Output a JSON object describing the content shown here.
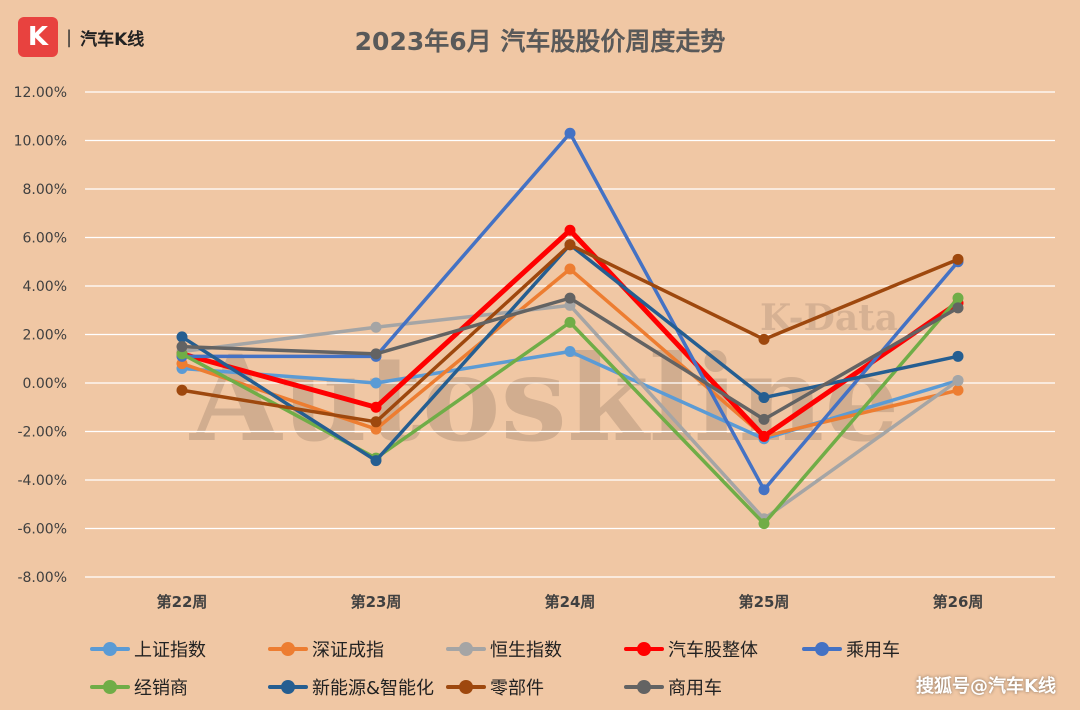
{
  "logo": {
    "mark": "K",
    "separator": "|",
    "text": "汽车K线"
  },
  "watermark": {
    "big": "Autoskline",
    "small": "K-Data"
  },
  "source_label": "搜狐号@汽车K线",
  "chart_data": {
    "type": "line",
    "title": "2023年6月 汽车股股价周度走势",
    "categories": [
      "第22周",
      "第23周",
      "第24周",
      "第25周",
      "第26周"
    ],
    "ylim": [
      -8,
      12
    ],
    "yticks": [
      12,
      10,
      8,
      6,
      4,
      2,
      0,
      -2,
      -4,
      -6,
      -8
    ],
    "ytick_labels": [
      "12.00%",
      "10.00%",
      "8.00%",
      "6.00%",
      "4.00%",
      "2.00%",
      "0.00%",
      "-2.00%",
      "-4.00%",
      "-6.00%",
      "-8.00%"
    ],
    "grid": true,
    "legend_position": "bottom",
    "series": [
      {
        "name": "上证指数",
        "color": "#5b9bd5",
        "values": [
          0.6,
          0.0,
          1.3,
          -2.3,
          0.1
        ]
      },
      {
        "name": "深证成指",
        "color": "#ed7d31",
        "values": [
          0.8,
          -1.9,
          4.7,
          -2.2,
          -0.3
        ]
      },
      {
        "name": "恒生指数",
        "color": "#a5a5a5",
        "values": [
          1.3,
          2.3,
          3.2,
          -5.6,
          0.1
        ]
      },
      {
        "name": "汽车股整体",
        "color": "#ff0000",
        "values": [
          1.2,
          -1.0,
          6.3,
          -2.2,
          3.3
        ]
      },
      {
        "name": "乘用车",
        "color": "#4472c4",
        "values": [
          1.1,
          1.1,
          10.3,
          -4.4,
          5.0
        ]
      },
      {
        "name": "经销商",
        "color": "#70ad47",
        "values": [
          1.2,
          -3.1,
          2.5,
          -5.8,
          3.5
        ]
      },
      {
        "name": "新能源&智能化",
        "color": "#255e91",
        "values": [
          1.9,
          -3.2,
          5.7,
          -0.6,
          1.1
        ]
      },
      {
        "name": "零部件",
        "color": "#9e480e",
        "values": [
          -0.3,
          -1.6,
          5.7,
          1.8,
          5.1
        ]
      },
      {
        "name": "商用车",
        "color": "#636363",
        "values": [
          1.5,
          1.2,
          3.5,
          -1.5,
          3.1
        ]
      }
    ]
  }
}
